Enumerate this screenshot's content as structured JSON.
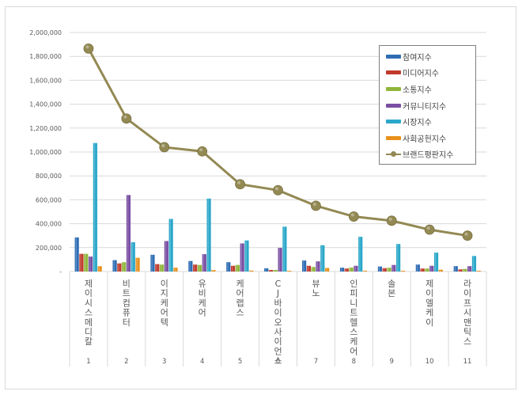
{
  "chart_data": {
    "type": "bar",
    "title": "",
    "xlabel": "",
    "ylabel": "",
    "ylim": [
      0,
      2000000
    ],
    "yticks": [
      "-",
      "200,000",
      "400,000",
      "600,000",
      "800,000",
      "1,000,000",
      "1,200,000",
      "1,400,000",
      "1,600,000",
      "1,800,000",
      "2,000,000"
    ],
    "grid": true,
    "legend_position": "top-right",
    "x_numbers": [
      "1",
      "2",
      "3",
      "4",
      "5",
      "6",
      "7",
      "8",
      "9",
      "10",
      "11"
    ],
    "categories": [
      "제이시스메디칼",
      "비트컴퓨터",
      "이지케어텍",
      "유비케어",
      "케어랩스",
      "CJ바이오사이언스",
      "뷰노",
      "인피니트헬스케어",
      "솔본",
      "제이엘케이",
      "라이프시맨틱스"
    ],
    "series": [
      {
        "name": "참여지수",
        "type": "bar",
        "color": "#2e6db4",
        "values": [
          285000,
          95000,
          140000,
          88000,
          78000,
          27000,
          92000,
          32000,
          42000,
          58000,
          45000
        ]
      },
      {
        "name": "미디어지수",
        "type": "bar",
        "color": "#c0392b",
        "values": [
          148000,
          68000,
          62000,
          58000,
          48000,
          13000,
          48000,
          25000,
          28000,
          25000,
          18000
        ]
      },
      {
        "name": "소통지수",
        "type": "bar",
        "color": "#8fb63a",
        "values": [
          148000,
          78000,
          58000,
          55000,
          55000,
          13000,
          38000,
          33000,
          32000,
          25000,
          22000
        ]
      },
      {
        "name": "커뮤니티지수",
        "type": "bar",
        "color": "#7a4fa3",
        "values": [
          125000,
          640000,
          255000,
          145000,
          235000,
          198000,
          85000,
          48000,
          55000,
          48000,
          45000
        ]
      },
      {
        "name": "시장지수",
        "type": "bar",
        "color": "#2aa7c9",
        "values": [
          1075000,
          245000,
          440000,
          610000,
          260000,
          375000,
          220000,
          290000,
          230000,
          158000,
          130000
        ]
      },
      {
        "name": "사회공헌지수",
        "type": "bar",
        "color": "#e8901c",
        "values": [
          45000,
          115000,
          32000,
          12000,
          8000,
          6000,
          30000,
          4000,
          5000,
          15000,
          5000
        ]
      },
      {
        "name": "브랜드평판지수",
        "type": "line",
        "color": "#938953",
        "values": [
          1865000,
          1280000,
          1040000,
          1005000,
          730000,
          680000,
          550000,
          460000,
          425000,
          350000,
          300000
        ]
      }
    ]
  },
  "legend": {
    "items": [
      "참여지수",
      "미디어지수",
      "소통지수",
      "커뮤니티지수",
      "시장지수",
      "사회공헌지수",
      "브랜드평판지수"
    ]
  }
}
